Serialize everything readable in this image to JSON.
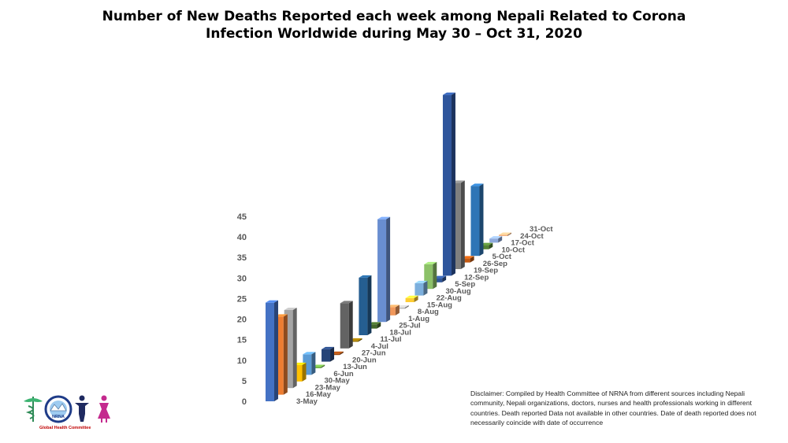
{
  "title": {
    "line1": "Number of New Deaths Reported each week among Nepali Related to Corona",
    "line2": "Infection Worldwide during May 30 – Oct 31, 2020"
  },
  "disclaimer": "Disclaimer: Compiled by Health Committee  of NRNA from different sources including Nepali community, Nepali organizations, doctors, nurses and health professionals working in different countries. Death reported Data not available in other countries. Date of death reported does not necessarily coincide with date of occurrence",
  "logo": {
    "badge_text": "NRNA",
    "caption": "Global Health Committee"
  },
  "chart_data": {
    "type": "bar",
    "style": "3d-perspective-columns",
    "title": "Number of New Deaths Reported each week among Nepali Related to Corona Infection Worldwide during May 30 – Oct 31, 2020",
    "categories": [
      "3-May",
      "16-May",
      "23-May",
      "30-May",
      "6-Jun",
      "13-Jun",
      "20-Jun",
      "27-Jun",
      "4-Jul",
      "11-Jul",
      "18-Jul",
      "25-Jul",
      "1-Aug",
      "8-Aug",
      "15-Aug",
      "22-Aug",
      "30-Aug",
      "5-Sep",
      "12-Sep",
      "19-Sep",
      "26-Sep",
      "5-Oct",
      "10-Oct",
      "17-Oct",
      "24-Oct",
      "31-Oct"
    ],
    "values": [
      24,
      19,
      19,
      4,
      5,
      0,
      3,
      0,
      11,
      0,
      14,
      1,
      25,
      2,
      0,
      1,
      3,
      6,
      1,
      44,
      21,
      1,
      17,
      1,
      1,
      0
    ],
    "colors": [
      "#4472c4",
      "#ed7d31",
      "#a5a5a5",
      "#ffc000",
      "#5b9bd5",
      "#70ad47",
      "#264478",
      "#9e480e",
      "#636363",
      "#997300",
      "#255e91",
      "#43682b",
      "#698ed0",
      "#f1975a",
      "#b7b7b7",
      "#ffcd33",
      "#7cafdd",
      "#8cc168",
      "#2f5597",
      "#2e559c",
      "#7f7f7f",
      "#c55a11",
      "#2e75b6",
      "#548235",
      "#8faadc",
      "#f4b183"
    ],
    "ylim": [
      0,
      45
    ],
    "yticks": [
      "0",
      "5",
      "10",
      "15",
      "20",
      "25",
      "30",
      "35",
      "40",
      "45"
    ],
    "grid": false
  }
}
